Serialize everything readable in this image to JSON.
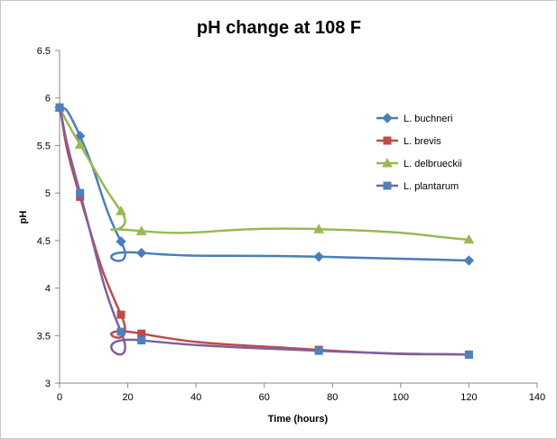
{
  "chart_data": {
    "type": "line",
    "title": "pH change at 108 F",
    "xlabel": "Time (hours)",
    "ylabel": "pH",
    "xlim": [
      0,
      140
    ],
    "ylim": [
      3,
      6.5
    ],
    "xticks": [
      "0",
      "20",
      "40",
      "60",
      "80",
      "100",
      "120",
      "140"
    ],
    "yticks": [
      "3",
      "3.5",
      "4",
      "4.5",
      "5",
      "5.5",
      "6",
      "6.5"
    ],
    "grid": false,
    "legend_position": "right",
    "smooth": true,
    "series": [
      {
        "name": "L. buchneri",
        "color": "#4a7ebb",
        "marker": "diamond",
        "points": [
          [
            0,
            5.9
          ],
          [
            6,
            5.6
          ],
          [
            18,
            4.49
          ],
          [
            24,
            4.37
          ],
          [
            76,
            4.33
          ],
          [
            120,
            4.29
          ]
        ]
      },
      {
        "name": "L. brevis",
        "color": "#be4b48",
        "marker": "square",
        "points": [
          [
            0,
            5.9
          ],
          [
            6,
            4.96
          ],
          [
            18,
            3.72
          ],
          [
            24,
            3.52
          ],
          [
            76,
            3.35
          ],
          [
            120,
            3.3
          ]
        ]
      },
      {
        "name": "L. delbrueckii",
        "color": "#98b954",
        "marker": "triangle",
        "points": [
          [
            0,
            5.9
          ],
          [
            6,
            5.51
          ],
          [
            18,
            4.81
          ],
          [
            24,
            4.6
          ],
          [
            76,
            4.62
          ],
          [
            120,
            4.51
          ]
        ]
      },
      {
        "name": "L. plantarum",
        "color": "#7d60a0",
        "marker": "square",
        "markerColor": "#4f81bd",
        "points": [
          [
            0,
            5.9
          ],
          [
            6,
            5.0
          ],
          [
            18,
            3.54
          ],
          [
            24,
            3.45
          ],
          [
            76,
            3.34
          ],
          [
            120,
            3.3
          ]
        ]
      }
    ]
  }
}
